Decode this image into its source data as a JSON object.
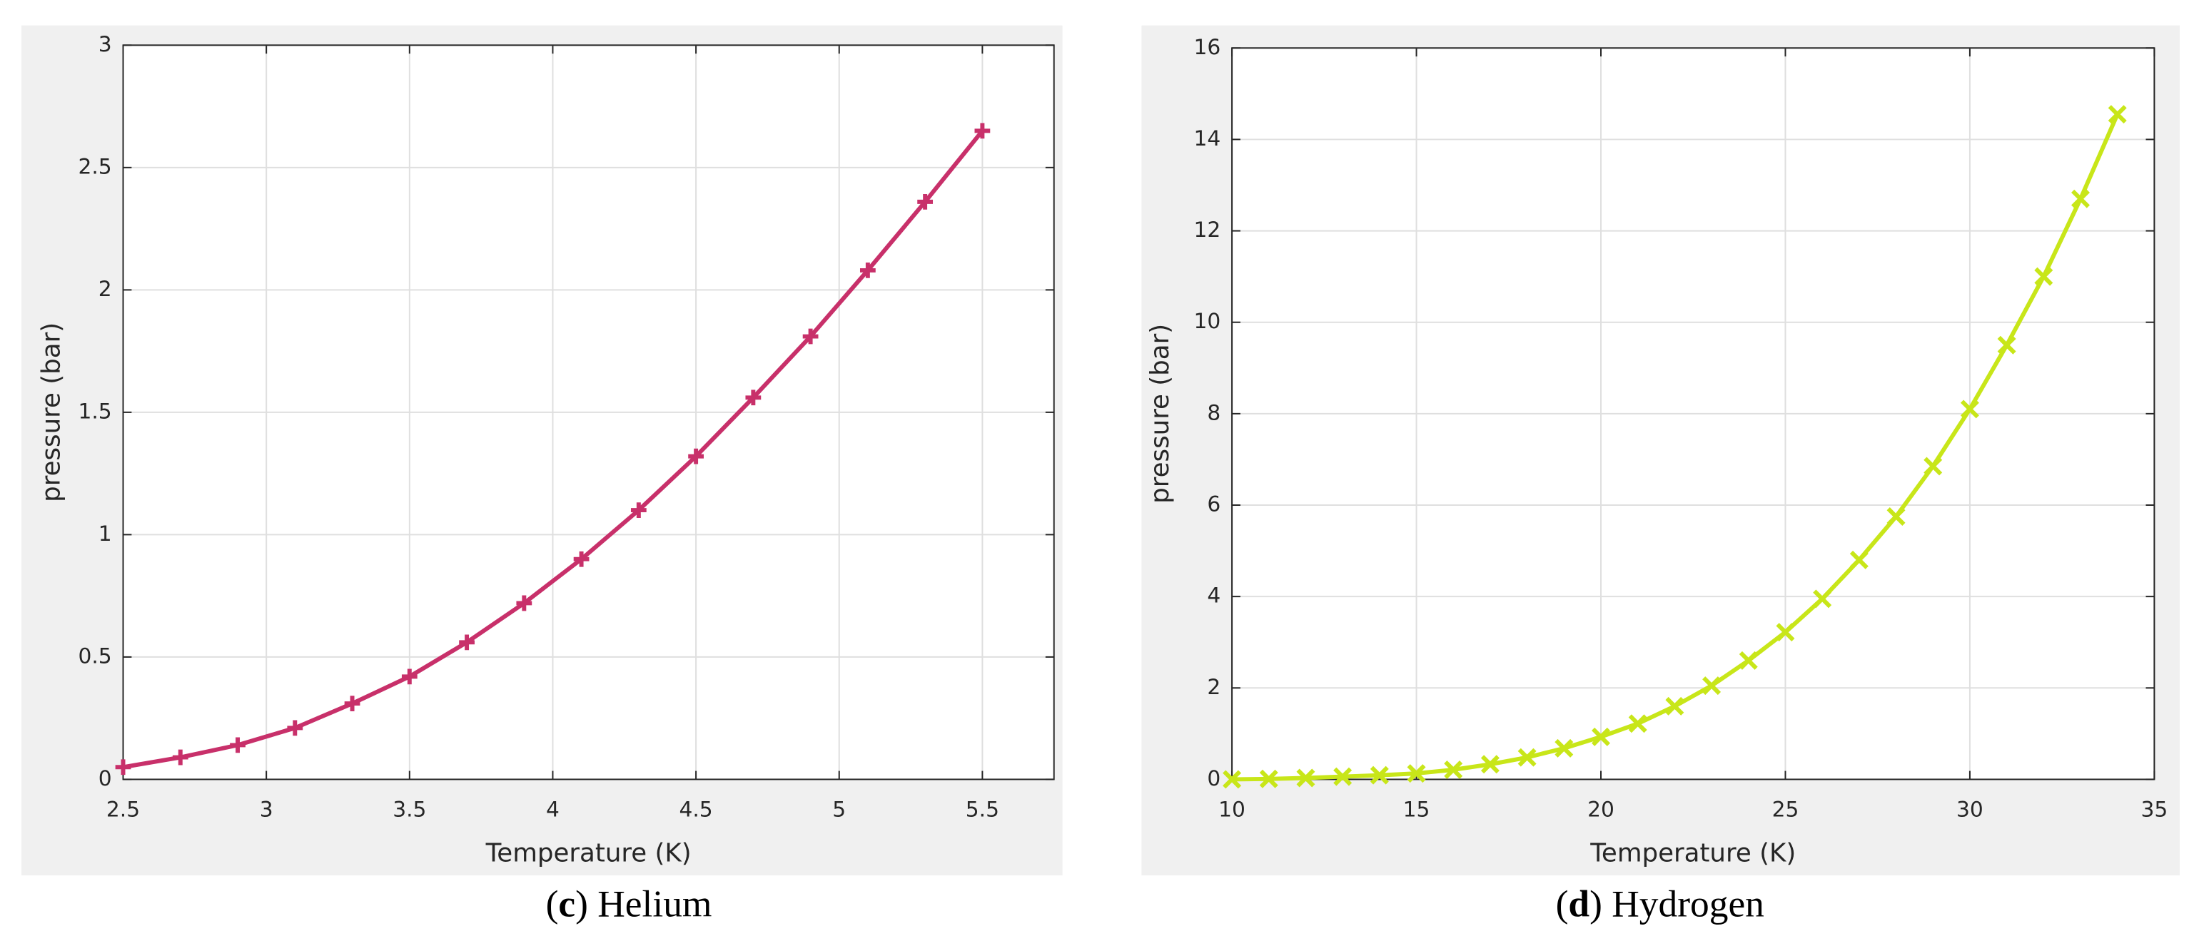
{
  "chart_data": [
    {
      "type": "line",
      "x_label": "Temperature (K)",
      "y_label": "pressure (bar)",
      "caption": {
        "open": "(",
        "letter": "c",
        "rest": ") Helium"
      },
      "x": [
        2.5,
        2.7,
        2.9,
        3.1,
        3.3,
        3.5,
        3.7,
        3.9,
        4.1,
        4.3,
        4.5,
        4.7,
        4.9,
        5.1,
        5.3,
        5.5
      ],
      "series": [
        {
          "color": "#c8306a",
          "marker": "+",
          "values": [
            0.05,
            0.09,
            0.14,
            0.21,
            0.31,
            0.42,
            0.56,
            0.72,
            0.9,
            1.1,
            1.32,
            1.56,
            1.81,
            2.08,
            2.36,
            2.65
          ]
        }
      ],
      "xlim": [
        2.5,
        5.75
      ],
      "ylim": [
        0,
        3
      ],
      "xticks": [
        2.5,
        3,
        3.5,
        4,
        4.5,
        5,
        5.5
      ],
      "yticks": [
        0,
        0.5,
        1,
        1.5,
        2,
        2.5,
        3
      ],
      "grid": true
    },
    {
      "type": "line",
      "x_label": "Temperature (K)",
      "y_label": "pressure (bar)",
      "caption": {
        "open": "(",
        "letter": "d",
        "rest": ") Hydrogen"
      },
      "x": [
        10,
        11,
        12,
        13,
        14,
        15,
        16,
        17,
        18,
        19,
        20,
        21,
        22,
        23,
        24,
        25,
        26,
        27,
        28,
        29,
        30,
        31,
        32,
        33,
        34
      ],
      "series": [
        {
          "color": "#c8e619",
          "marker": "x",
          "values": [
            0.0,
            0.01,
            0.03,
            0.06,
            0.09,
            0.13,
            0.21,
            0.33,
            0.48,
            0.68,
            0.93,
            1.22,
            1.6,
            2.05,
            2.6,
            3.22,
            3.95,
            4.8,
            5.75,
            6.85,
            8.1,
            9.5,
            11.0,
            12.7,
            14.55
          ]
        }
      ],
      "xlim": [
        10,
        35
      ],
      "ylim": [
        0,
        16
      ],
      "xticks": [
        10,
        15,
        20,
        25,
        30,
        35
      ],
      "yticks": [
        0,
        2,
        4,
        6,
        8,
        10,
        12,
        14,
        16
      ],
      "grid": true
    }
  ]
}
